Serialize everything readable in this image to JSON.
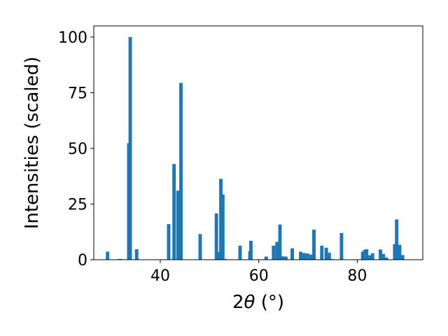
{
  "chart_data": {
    "type": "bar",
    "title": "",
    "xlabel_parts": {
      "main": "2",
      "theta": "θ",
      "rest": " (°)"
    },
    "ylabel": "Intensities (scaled)",
    "xlim": [
      26.5,
      93.3
    ],
    "ylim": [
      0,
      105
    ],
    "xticks": [
      40,
      60,
      80
    ],
    "yticks": [
      0,
      25,
      50,
      75,
      100
    ],
    "grid": false,
    "bar_color": "#1f77b4",
    "bar_width": 0.7,
    "x": [
      29.3,
      31.7,
      32.0,
      33.6,
      33.9,
      35.2,
      41.7,
      42.8,
      43.6,
      44.2,
      48.1,
      51.4,
      51.9,
      52.3,
      52.7,
      53.2,
      56.2,
      58.2,
      58.4,
      61.5,
      63.0,
      63.7,
      64.3,
      64.9,
      65.5,
      66.8,
      68.5,
      69.2,
      69.9,
      70.6,
      71.2,
      72.8,
      73.7,
      74.3,
      74.9,
      76.8,
      81.1,
      81.5,
      81.9,
      82.5,
      83.1,
      84.7,
      85.3,
      85.9,
      87.6,
      88.0,
      88.6,
      89.2
    ],
    "values": [
      3.6,
      0.3,
      0.3,
      52.3,
      100,
      4.7,
      16.0,
      43.0,
      31.0,
      79.4,
      11.5,
      20.8,
      3.5,
      36.3,
      29.3,
      0.3,
      6.3,
      3.8,
      8.5,
      1.4,
      6.3,
      8.0,
      15.8,
      1.5,
      1.4,
      5.1,
      3.6,
      3.0,
      2.8,
      2.3,
      13.5,
      6.3,
      5.4,
      3.1,
      0.3,
      12.0,
      3.6,
      4.4,
      4.7,
      2.0,
      2.9,
      4.6,
      2.6,
      1.0,
      7.0,
      18.1,
      6.7,
      2.1
    ]
  }
}
